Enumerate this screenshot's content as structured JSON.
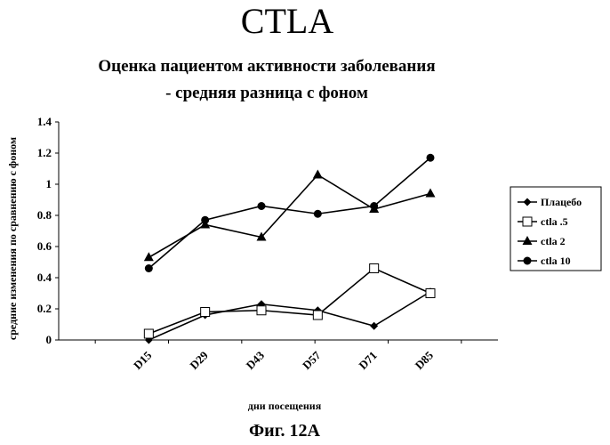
{
  "chart_data": {
    "type": "line",
    "title": "CTLA",
    "subtitle_line1": "Оценка пациентом активности заболевания",
    "subtitle_line2": "-  средняя разница с фоном",
    "xlabel": "дни посещения",
    "ylabel": "средние изменения по сравнению с фоном",
    "caption": "Фиг. 12A",
    "categories": [
      "D15",
      "D29",
      "D43",
      "D57",
      "D71",
      "D85"
    ],
    "ylim": [
      0,
      1.4
    ],
    "yticks": [
      "0",
      "0.2",
      "0.4",
      "0.6",
      "0.8",
      "1",
      "1.2",
      "1.4"
    ],
    "legend_position": "right",
    "series": [
      {
        "name": "Плацебо",
        "marker": "diamond",
        "values": [
          0.0,
          0.16,
          0.23,
          0.19,
          0.09,
          0.31
        ]
      },
      {
        "name": "ctla .5",
        "marker": "square-open",
        "values": [
          0.04,
          0.18,
          0.19,
          0.16,
          0.46,
          0.3
        ]
      },
      {
        "name": "ctla 2",
        "marker": "triangle",
        "values": [
          0.53,
          0.74,
          0.66,
          1.06,
          0.84,
          0.94
        ]
      },
      {
        "name": "ctla 10",
        "marker": "circle",
        "values": [
          0.46,
          0.77,
          0.86,
          0.81,
          0.86,
          1.17
        ]
      }
    ]
  }
}
